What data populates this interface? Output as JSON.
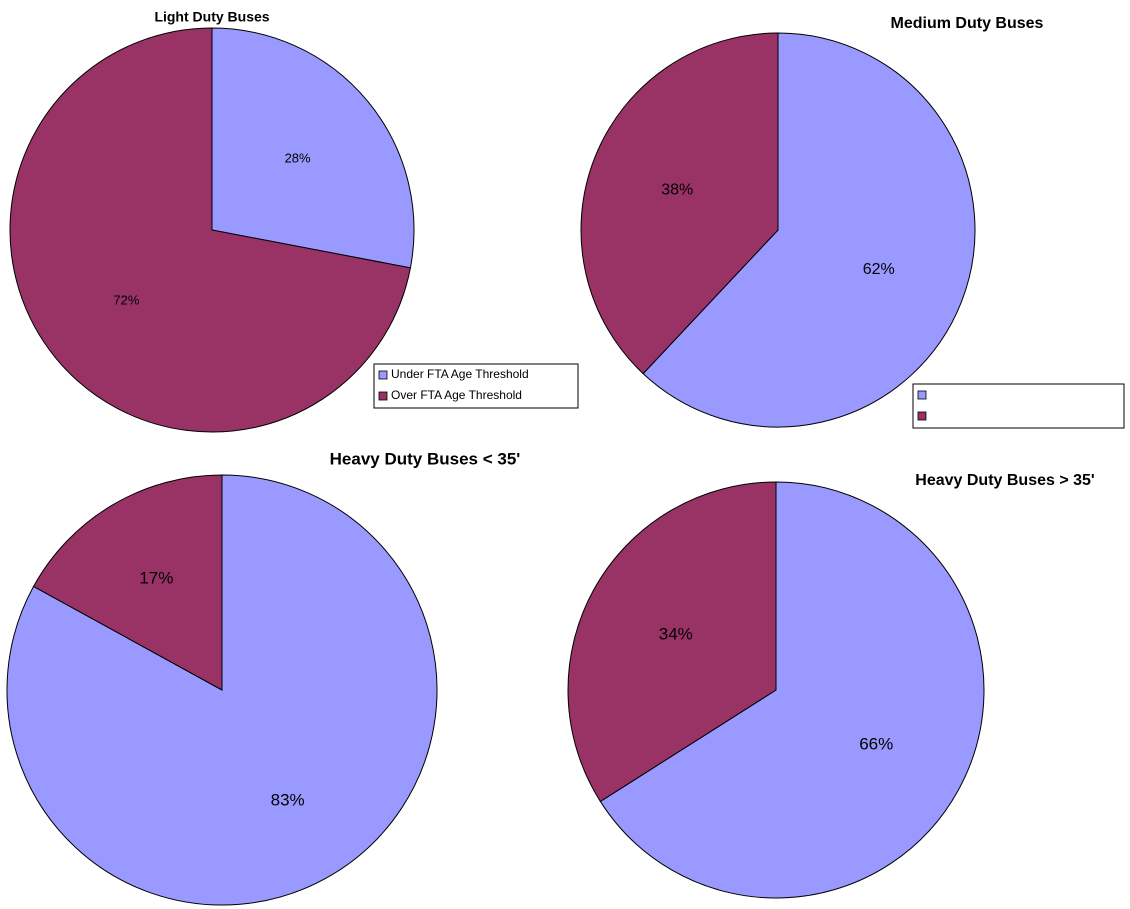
{
  "chart_data": [
    {
      "type": "pie",
      "title": "Light Duty Buses",
      "categories": [
        "Under FTA Age Threshold",
        "Over FTA Age Threshold"
      ],
      "values": [
        28,
        72
      ],
      "value_labels": [
        "28%",
        "72%"
      ],
      "colors": [
        "#9999ff",
        "#993366"
      ],
      "legend": true
    },
    {
      "type": "pie",
      "title": "Medium Duty Buses",
      "categories": [
        null,
        null
      ],
      "values": [
        62,
        38
      ],
      "value_labels": [
        "62%",
        "38%"
      ],
      "colors": [
        "#9999ff",
        "#993366"
      ],
      "legend": true
    },
    {
      "type": "pie",
      "title": "Heavy Duty Buses < 35'",
      "categories": [
        null,
        null
      ],
      "values": [
        83,
        17
      ],
      "value_labels": [
        "83%",
        "17%"
      ],
      "colors": [
        "#9999ff",
        "#993366"
      ],
      "legend": false
    },
    {
      "type": "pie",
      "title": "Heavy Duty Buses > 35'",
      "categories": [
        null,
        null
      ],
      "values": [
        66,
        34
      ],
      "value_labels": [
        "66%",
        "34%"
      ],
      "colors": [
        "#9999ff",
        "#993366"
      ],
      "legend": false
    }
  ]
}
